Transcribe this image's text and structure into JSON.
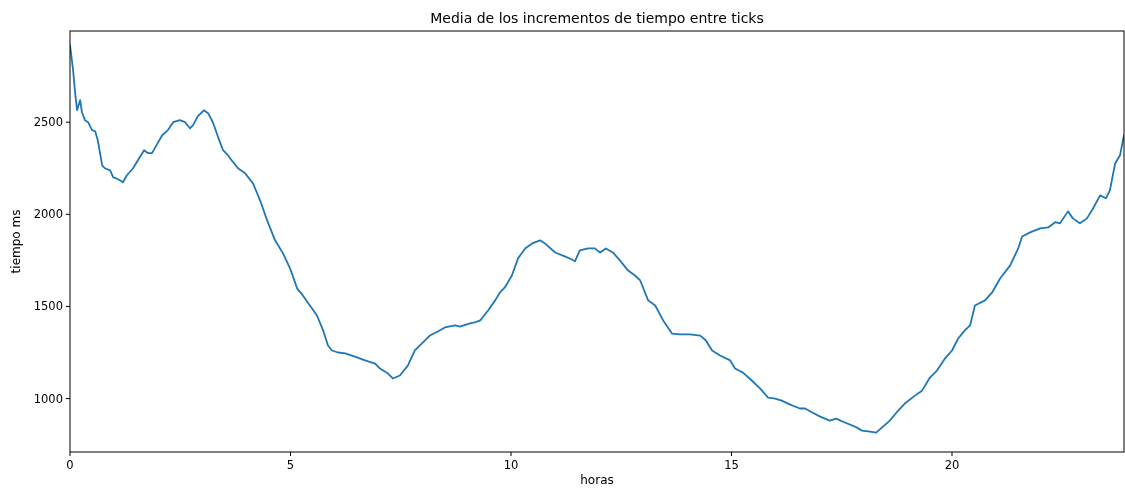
{
  "chart_data": {
    "type": "line",
    "title": "Media de los incrementos de tiempo entre ticks",
    "xlabel": "horas",
    "ylabel": "tiempo ms",
    "xlim": [
      0,
      23.9
    ],
    "ylim": [
      710,
      2995
    ],
    "xticks": [
      0,
      5,
      10,
      15,
      20
    ],
    "yticks": [
      1000,
      1500,
      2000,
      2500
    ],
    "grid": false,
    "line_style": "solid",
    "series": [
      {
        "color": "#1f77b4",
        "x": [
          0,
          0.07,
          0.11,
          0.16,
          0.23,
          0.27,
          0.34,
          0.41,
          0.5,
          0.57,
          0.63,
          0.73,
          0.79,
          0.91,
          0.98,
          1.04,
          1.13,
          1.2,
          1.29,
          1.43,
          1.54,
          1.68,
          1.77,
          1.86,
          1.95,
          2.09,
          2.22,
          2.34,
          2.49,
          2.61,
          2.72,
          2.79,
          2.9,
          3.04,
          3.13,
          3.24,
          3.36,
          3.47,
          3.58,
          3.7,
          3.81,
          3.97,
          4.15,
          4.31,
          4.47,
          4.65,
          4.83,
          4.99,
          5.15,
          5.28,
          5.44,
          5.6,
          5.74,
          5.85,
          5.94,
          6.08,
          6.24,
          6.46,
          6.69,
          6.92,
          7.03,
          7.21,
          7.32,
          7.48,
          7.66,
          7.82,
          7.98,
          8.16,
          8.34,
          8.5,
          8.73,
          8.84,
          9.07,
          9.18,
          9.3,
          9.48,
          9.64,
          9.75,
          9.86,
          10.02,
          10.16,
          10.32,
          10.48,
          10.66,
          10.77,
          11.0,
          11.22,
          11.38,
          11.45,
          11.56,
          11.75,
          11.9,
          12.02,
          12.15,
          12.31,
          12.47,
          12.65,
          12.81,
          12.93,
          13.11,
          13.27,
          13.45,
          13.65,
          13.83,
          14.06,
          14.29,
          14.42,
          14.56,
          14.74,
          14.97,
          15.08,
          15.26,
          15.46,
          15.65,
          15.83,
          15.99,
          16.14,
          16.33,
          16.55,
          16.67,
          16.83,
          17.01,
          17.23,
          17.37,
          17.57,
          17.8,
          17.96,
          18.14,
          18.28,
          18.41,
          18.59,
          18.78,
          18.93,
          19.16,
          19.32,
          19.5,
          19.66,
          19.84,
          20.0,
          20.14,
          20.29,
          20.41,
          20.52,
          20.75,
          20.91,
          21.09,
          21.32,
          21.5,
          21.59,
          21.77,
          22.0,
          22.18,
          22.34,
          22.45,
          22.63,
          22.74,
          22.9,
          23.06,
          23.2,
          23.36,
          23.49,
          23.58,
          23.7,
          23.81,
          23.9
        ],
        "values": [
          2920,
          2783,
          2674,
          2565,
          2620,
          2554,
          2511,
          2500,
          2457,
          2451,
          2402,
          2266,
          2250,
          2239,
          2201,
          2196,
          2185,
          2174,
          2212,
          2250,
          2293,
          2348,
          2332,
          2332,
          2370,
          2429,
          2457,
          2500,
          2511,
          2500,
          2467,
          2484,
          2533,
          2565,
          2549,
          2500,
          2418,
          2348,
          2321,
          2283,
          2250,
          2223,
          2168,
          2076,
          1967,
          1859,
          1788,
          1707,
          1598,
          1560,
          1505,
          1451,
          1370,
          1288,
          1261,
          1250,
          1245,
          1228,
          1207,
          1190,
          1163,
          1136,
          1109,
          1125,
          1179,
          1261,
          1299,
          1342,
          1364,
          1386,
          1397,
          1391,
          1408,
          1413,
          1424,
          1478,
          1533,
          1576,
          1603,
          1668,
          1761,
          1815,
          1842,
          1859,
          1842,
          1793,
          1772,
          1755,
          1745,
          1804,
          1815,
          1815,
          1793,
          1815,
          1793,
          1750,
          1696,
          1668,
          1641,
          1533,
          1505,
          1424,
          1353,
          1348,
          1348,
          1342,
          1315,
          1261,
          1234,
          1207,
          1163,
          1141,
          1098,
          1054,
          1005,
          1000,
          989,
          967,
          946,
          946,
          924,
          902,
          880,
          891,
          870,
          848,
          826,
          821,
          815,
          842,
          880,
          935,
          973,
          1016,
          1043,
          1114,
          1152,
          1217,
          1261,
          1326,
          1370,
          1397,
          1505,
          1533,
          1576,
          1652,
          1723,
          1815,
          1880,
          1902,
          1924,
          1929,
          1957,
          1951,
          2016,
          1978,
          1951,
          1978,
          2033,
          2103,
          2087,
          2130,
          2277,
          2321,
          2429
        ]
      }
    ]
  }
}
